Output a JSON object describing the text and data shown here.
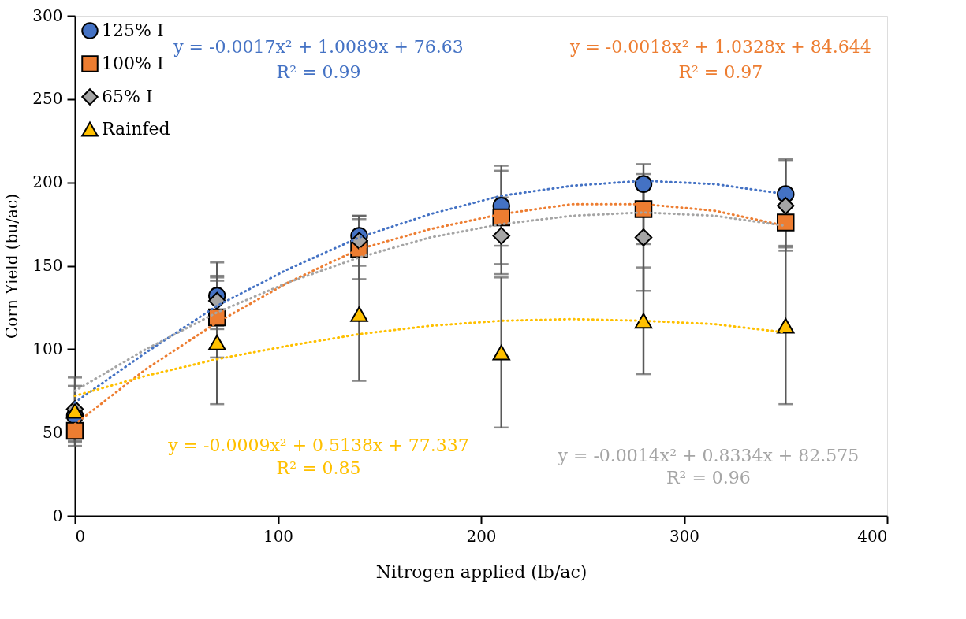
{
  "chart_data": {
    "type": "scatter",
    "xlabel": "Nitrogen applied (lb/ac)",
    "ylabel": "Corn Yield (bu/ac)",
    "x": [
      0,
      70,
      140,
      210,
      280,
      350
    ],
    "xlim": [
      0,
      400
    ],
    "xticks": [
      0,
      100,
      200,
      300,
      400
    ],
    "ylim": [
      0,
      300
    ],
    "yticks": [
      0,
      50,
      100,
      150,
      200,
      250,
      300
    ],
    "grid": false,
    "legend": "top left",
    "line_style": "dotted",
    "series": [
      {
        "name": "125% I",
        "color": "#4472c4",
        "marker": "circle",
        "values": [
          60,
          132,
          168,
          186,
          199,
          193
        ],
        "errors": [
          18,
          20,
          12,
          24,
          12,
          21
        ]
      },
      {
        "name": "100% I",
        "color": "#ed7d31",
        "marker": "square",
        "values": [
          51,
          119,
          160,
          179,
          184,
          176
        ],
        "errors": [
          7,
          24,
          18,
          28,
          21,
          14
        ]
      },
      {
        "name": "65% I",
        "color": "#a5a5a5",
        "marker": "diamond",
        "values": [
          64,
          129,
          165,
          168,
          167,
          186
        ],
        "errors": [
          19,
          15,
          15,
          23,
          32,
          27
        ]
      },
      {
        "name": "Rainfed",
        "color": "#ffc000",
        "marker": "triangle",
        "values": [
          63,
          104,
          121,
          98,
          117,
          114
        ],
        "errors": [
          null,
          37,
          40,
          45,
          32,
          47
        ]
      },
      {
        "type": "line",
        "color": "#4472c4",
        "x": [
          0,
          35,
          70,
          105,
          140,
          175,
          210,
          245,
          280,
          315,
          350
        ],
        "values": [
          68,
          98,
          126,
          148,
          167,
          181,
          192,
          198,
          201,
          199,
          193
        ]
      },
      {
        "type": "line",
        "color": "#ed7d31",
        "x": [
          0,
          35,
          70,
          105,
          140,
          175,
          210,
          245,
          280,
          315,
          350
        ],
        "values": [
          55,
          88,
          116,
          140,
          160,
          172,
          181,
          187,
          187,
          183,
          174
        ]
      },
      {
        "type": "line",
        "color": "#a5a5a5",
        "x": [
          0,
          35,
          70,
          105,
          140,
          175,
          210,
          245,
          280,
          315,
          350
        ],
        "values": [
          75,
          100,
          122,
          140,
          155,
          167,
          175,
          180,
          182,
          180,
          174
        ]
      },
      {
        "type": "line",
        "color": "#ffc000",
        "x": [
          0,
          35,
          70,
          105,
          140,
          175,
          210,
          245,
          280,
          315,
          350
        ],
        "values": [
          72,
          84,
          94,
          102,
          109,
          114,
          117,
          118,
          117,
          115,
          110
        ]
      }
    ],
    "annotations": [
      "y = -0.0017x² + 1.0089x + 76.63",
      "R² = 0.99",
      "y = -0.0018x² + 1.0328x + 84.644",
      "R² = 0.97",
      "y = -0.0014x² + 0.8334x + 82.575",
      "R² = 0.96",
      "y = -0.0009x² + 0.5138x + 77.337",
      "R² = 0.85"
    ]
  }
}
